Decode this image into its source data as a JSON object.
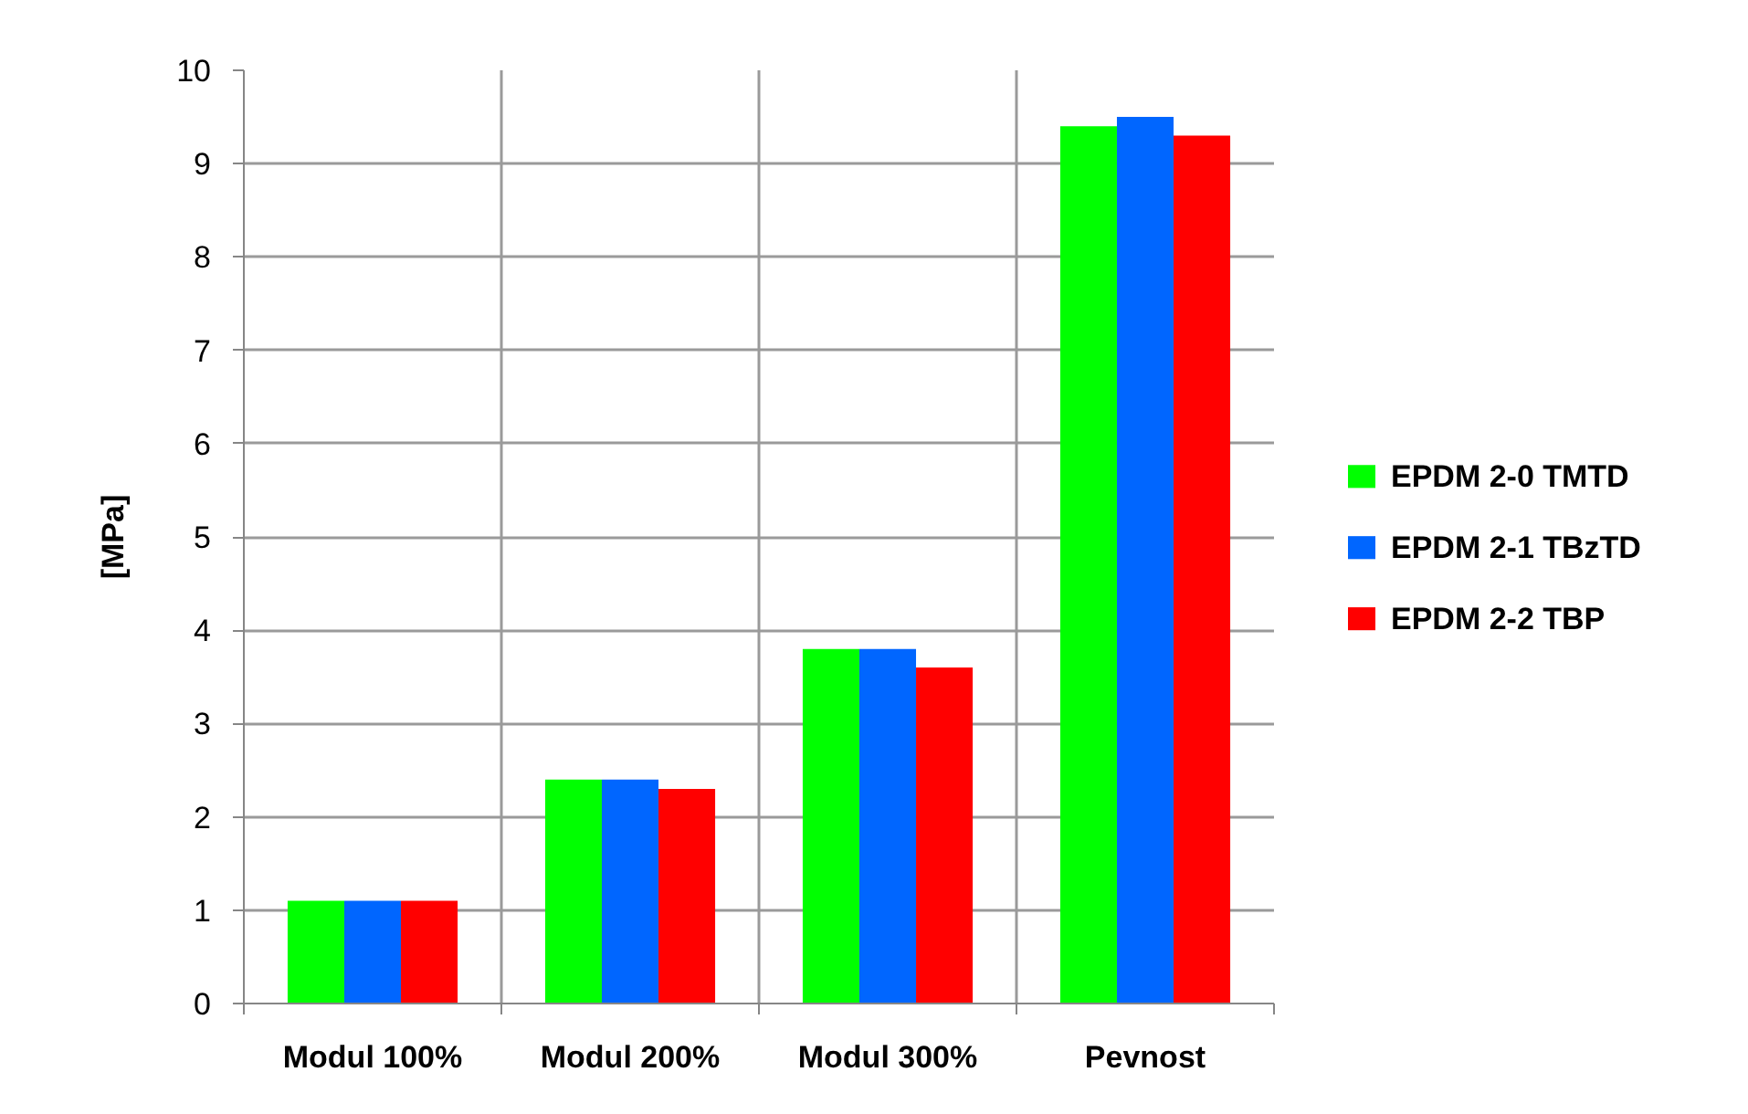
{
  "chart_data": {
    "type": "bar",
    "ylabel": "[MPa]",
    "categories": [
      "Modul 100%",
      "Modul 200%",
      "Modul 300%",
      "Pevnost"
    ],
    "series": [
      {
        "name": "EPDM 2-0 TMTD",
        "color": "#00ff00",
        "values": [
          1.1,
          2.4,
          3.8,
          9.4
        ]
      },
      {
        "name": "EPDM 2-1 TBzTD",
        "color": "#0066ff",
        "values": [
          1.1,
          2.4,
          3.8,
          9.5
        ]
      },
      {
        "name": "EPDM 2-2 TBP",
        "color": "#ff0000",
        "values": [
          1.1,
          2.3,
          3.6,
          9.3
        ]
      }
    ],
    "ylim": [
      0,
      10
    ],
    "yticks": [
      0,
      1,
      2,
      3,
      4,
      5,
      6,
      7,
      8,
      9,
      10
    ],
    "grid": true,
    "legend": "right"
  }
}
